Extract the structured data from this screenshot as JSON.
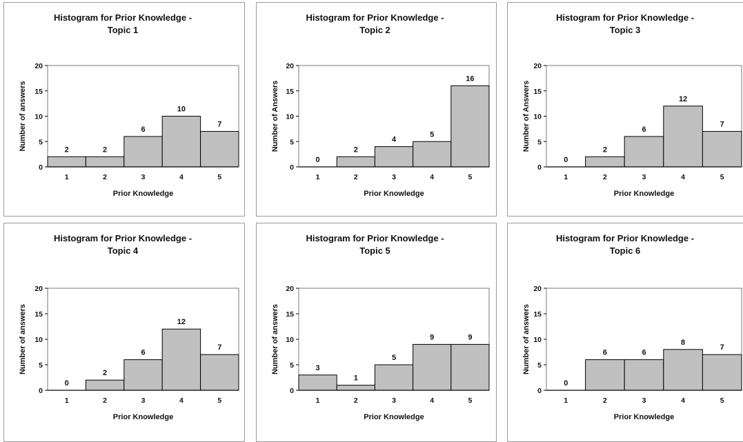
{
  "chart_data": [
    {
      "type": "bar",
      "title": "Histogram for Prior Knowledge - Topic 1",
      "title_lines": [
        "Histogram for Prior Knowledge -",
        "Topic 1"
      ],
      "xlabel": "Prior Knowledge",
      "ylabel": "Number of answers",
      "categories": [
        "1",
        "2",
        "3",
        "4",
        "5"
      ],
      "values": [
        2,
        2,
        6,
        10,
        7
      ],
      "ylim": [
        0,
        20
      ],
      "yticks": [
        0,
        5,
        10,
        15,
        20
      ],
      "bar_color": "#c0c0c0",
      "grid": false,
      "legend": "none"
    },
    {
      "type": "bar",
      "title": "Histogram for Prior Knowledge - Topic 2",
      "title_lines": [
        "Histogram for Prior Knowledge -",
        "Topic 2"
      ],
      "xlabel": "Prior Knowledge",
      "ylabel": "Number of Answers",
      "categories": [
        "1",
        "2",
        "3",
        "4",
        "5"
      ],
      "values": [
        0,
        2,
        4,
        5,
        16
      ],
      "ylim": [
        0,
        20
      ],
      "yticks": [
        0,
        5,
        10,
        15,
        20
      ],
      "bar_color": "#c0c0c0",
      "grid": false,
      "legend": "none"
    },
    {
      "type": "bar",
      "title": "Histogram for Prior Knowledge - Topic 3",
      "title_lines": [
        "Histogram for Prior Knowledge -",
        "Topic 3"
      ],
      "xlabel": "Prior Knowledge",
      "ylabel": "Number of Answers",
      "categories": [
        "1",
        "2",
        "3",
        "4",
        "5"
      ],
      "values": [
        0,
        2,
        6,
        12,
        7
      ],
      "ylim": [
        0,
        20
      ],
      "yticks": [
        0,
        5,
        10,
        15,
        20
      ],
      "bar_color": "#c0c0c0",
      "grid": false,
      "legend": "none"
    },
    {
      "type": "bar",
      "title": "Histogram for Prior Knowledge - Topic 4",
      "title_lines": [
        "Histogram for Prior Knowledge -",
        "Topic 4"
      ],
      "xlabel": "Prior Knowledge",
      "ylabel": "Number of answers",
      "categories": [
        "1",
        "2",
        "3",
        "4",
        "5"
      ],
      "values": [
        0,
        2,
        6,
        12,
        7
      ],
      "ylim": [
        0,
        20
      ],
      "yticks": [
        0,
        5,
        10,
        15,
        20
      ],
      "bar_color": "#c0c0c0",
      "grid": false,
      "legend": "none"
    },
    {
      "type": "bar",
      "title": "Histogram for Prior Knowledge - Topic 5",
      "title_lines": [
        "Histogram for Prior Knowledge -",
        "Topic 5"
      ],
      "xlabel": "Prior Knowledge",
      "ylabel": "Number of answers",
      "categories": [
        "1",
        "2",
        "3",
        "4",
        "5"
      ],
      "values": [
        3,
        1,
        5,
        9,
        9
      ],
      "ylim": [
        0,
        20
      ],
      "yticks": [
        0,
        5,
        10,
        15,
        20
      ],
      "bar_color": "#c0c0c0",
      "grid": false,
      "legend": "none"
    },
    {
      "type": "bar",
      "title": "Histogram for Prior Knowledge - Topic 6",
      "title_lines": [
        "Histogram for Prior Knowledge -",
        "Topic 6"
      ],
      "xlabel": "Prior Knowledge",
      "ylabel": "Number of answers",
      "categories": [
        "1",
        "2",
        "3",
        "4",
        "5"
      ],
      "values": [
        0,
        6,
        6,
        8,
        7
      ],
      "ylim": [
        0,
        20
      ],
      "yticks": [
        0,
        5,
        10,
        15,
        20
      ],
      "bar_color": "#c0c0c0",
      "grid": false,
      "legend": "none"
    }
  ]
}
